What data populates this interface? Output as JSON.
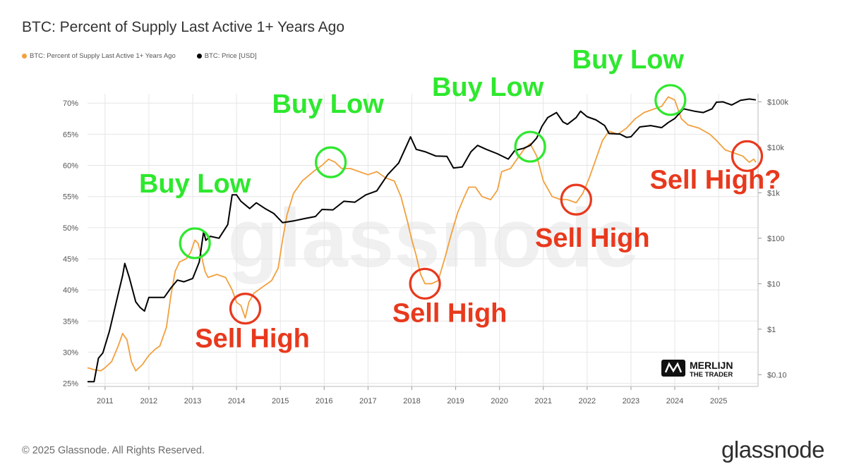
{
  "chart_data": {
    "type": "line",
    "title": "BTC: Percent of Supply Last Active 1+ Years Ago",
    "legend": {
      "placement": "top-left",
      "entries": [
        "BTC: Percent of Supply Last Active 1+ Years Ago",
        "BTC: Price [USD]"
      ]
    },
    "x_range": [
      2010.6,
      2025.9
    ],
    "x_ticks": [
      "2011",
      "2012",
      "2013",
      "2014",
      "2015",
      "2016",
      "2017",
      "2018",
      "2019",
      "2020",
      "2021",
      "2022",
      "2023",
      "2024",
      "2025"
    ],
    "y_left": {
      "ticks": [
        "25%",
        "30%",
        "35%",
        "40%",
        "45%",
        "50%",
        "55%",
        "60%",
        "65%",
        "70%"
      ],
      "range": [
        24.5,
        71.5
      ]
    },
    "y_right": {
      "scale": "log",
      "ticks": [
        "$0.10",
        "$1",
        "$10",
        "$100",
        "$1k",
        "$10k",
        "$100k"
      ],
      "range": [
        0.055,
        150000
      ]
    },
    "grid": true,
    "series": [
      {
        "name": "BTC: Percent of Supply Last Active 1+ Years Ago",
        "axis": "left",
        "color": "#f2a03d",
        "points": [
          [
            2010.6,
            27.5
          ],
          [
            2010.75,
            27.2
          ],
          [
            2010.9,
            27.0
          ],
          [
            2011.0,
            27.5
          ],
          [
            2011.15,
            28.5
          ],
          [
            2011.3,
            31.0
          ],
          [
            2011.4,
            33.0
          ],
          [
            2011.5,
            32.0
          ],
          [
            2011.6,
            28.5
          ],
          [
            2011.7,
            27.0
          ],
          [
            2011.85,
            28.0
          ],
          [
            2012.0,
            29.5
          ],
          [
            2012.15,
            30.5
          ],
          [
            2012.25,
            31.0
          ],
          [
            2012.4,
            34.0
          ],
          [
            2012.5,
            39.0
          ],
          [
            2012.6,
            43.0
          ],
          [
            2012.7,
            44.5
          ],
          [
            2012.85,
            45.0
          ],
          [
            2012.95,
            46.0
          ],
          [
            2013.05,
            48.0
          ],
          [
            2013.12,
            47.5
          ],
          [
            2013.2,
            45.5
          ],
          [
            2013.28,
            43.0
          ],
          [
            2013.35,
            42.0
          ],
          [
            2013.55,
            42.5
          ],
          [
            2013.75,
            42.0
          ],
          [
            2013.9,
            40.0
          ],
          [
            2014.0,
            38.0
          ],
          [
            2014.1,
            37.5
          ],
          [
            2014.2,
            35.5
          ],
          [
            2014.28,
            38.0
          ],
          [
            2014.4,
            39.5
          ],
          [
            2014.6,
            40.5
          ],
          [
            2014.8,
            41.5
          ],
          [
            2014.95,
            43.5
          ],
          [
            2015.05,
            48.0
          ],
          [
            2015.15,
            52.0
          ],
          [
            2015.3,
            55.5
          ],
          [
            2015.5,
            57.5
          ],
          [
            2015.75,
            59.0
          ],
          [
            2015.95,
            60.0
          ],
          [
            2016.1,
            61.0
          ],
          [
            2016.25,
            60.5
          ],
          [
            2016.4,
            59.5
          ],
          [
            2016.6,
            59.5
          ],
          [
            2016.8,
            59.0
          ],
          [
            2017.0,
            58.5
          ],
          [
            2017.2,
            59.0
          ],
          [
            2017.4,
            58.0
          ],
          [
            2017.6,
            57.5
          ],
          [
            2017.75,
            55.0
          ],
          [
            2017.9,
            51.0
          ],
          [
            2018.0,
            48.0
          ],
          [
            2018.1,
            45.5
          ],
          [
            2018.2,
            42.5
          ],
          [
            2018.3,
            41.0
          ],
          [
            2018.45,
            41.0
          ],
          [
            2018.6,
            41.5
          ],
          [
            2018.75,
            45.0
          ],
          [
            2018.9,
            49.0
          ],
          [
            2019.05,
            52.5
          ],
          [
            2019.2,
            55.0
          ],
          [
            2019.3,
            56.5
          ],
          [
            2019.45,
            56.5
          ],
          [
            2019.6,
            55.0
          ],
          [
            2019.8,
            54.5
          ],
          [
            2019.95,
            56.0
          ],
          [
            2020.05,
            59.0
          ],
          [
            2020.25,
            59.5
          ],
          [
            2020.4,
            61.0
          ],
          [
            2020.55,
            62.5
          ],
          [
            2020.7,
            63.5
          ],
          [
            2020.85,
            61.5
          ],
          [
            2021.0,
            57.5
          ],
          [
            2021.2,
            55.0
          ],
          [
            2021.4,
            54.5
          ],
          [
            2021.55,
            54.5
          ],
          [
            2021.75,
            54.0
          ],
          [
            2021.9,
            55.5
          ],
          [
            2022.05,
            58.0
          ],
          [
            2022.2,
            61.0
          ],
          [
            2022.35,
            64.0
          ],
          [
            2022.5,
            65.5
          ],
          [
            2022.7,
            65.0
          ],
          [
            2022.9,
            66.0
          ],
          [
            2023.1,
            67.5
          ],
          [
            2023.3,
            68.5
          ],
          [
            2023.5,
            69.0
          ],
          [
            2023.7,
            69.5
          ],
          [
            2023.85,
            71.0
          ],
          [
            2024.0,
            70.5
          ],
          [
            2024.15,
            67.5
          ],
          [
            2024.3,
            66.5
          ],
          [
            2024.55,
            66.0
          ],
          [
            2024.8,
            65.0
          ],
          [
            2024.95,
            64.0
          ],
          [
            2025.15,
            62.5
          ],
          [
            2025.35,
            62.0
          ],
          [
            2025.55,
            61.5
          ],
          [
            2025.7,
            60.5
          ],
          [
            2025.8,
            61.0
          ],
          [
            2025.85,
            60.5
          ]
        ]
      },
      {
        "name": "BTC: Price [USD]",
        "axis": "right",
        "color": "#000000",
        "points": [
          [
            2010.6,
            0.07
          ],
          [
            2010.75,
            0.07
          ],
          [
            2010.85,
            0.23
          ],
          [
            2010.95,
            0.3
          ],
          [
            2011.1,
            0.9
          ],
          [
            2011.3,
            6
          ],
          [
            2011.4,
            15
          ],
          [
            2011.45,
            28
          ],
          [
            2011.55,
            14
          ],
          [
            2011.7,
            4
          ],
          [
            2011.8,
            3
          ],
          [
            2011.9,
            2.5
          ],
          [
            2012.0,
            5
          ],
          [
            2012.15,
            5
          ],
          [
            2012.35,
            5
          ],
          [
            2012.5,
            8
          ],
          [
            2012.65,
            12
          ],
          [
            2012.8,
            11
          ],
          [
            2013.0,
            13
          ],
          [
            2013.15,
            30
          ],
          [
            2013.25,
            140
          ],
          [
            2013.3,
            90
          ],
          [
            2013.4,
            110
          ],
          [
            2013.6,
            100
          ],
          [
            2013.8,
            200
          ],
          [
            2013.9,
            900
          ],
          [
            2014.0,
            900
          ],
          [
            2014.1,
            650
          ],
          [
            2014.3,
            450
          ],
          [
            2014.45,
            600
          ],
          [
            2014.65,
            450
          ],
          [
            2014.85,
            350
          ],
          [
            2015.05,
            220
          ],
          [
            2015.3,
            240
          ],
          [
            2015.55,
            270
          ],
          [
            2015.8,
            300
          ],
          [
            2015.95,
            430
          ],
          [
            2016.2,
            420
          ],
          [
            2016.45,
            650
          ],
          [
            2016.7,
            620
          ],
          [
            2016.95,
            900
          ],
          [
            2017.2,
            1100
          ],
          [
            2017.45,
            2500
          ],
          [
            2017.7,
            4500
          ],
          [
            2017.9,
            12000
          ],
          [
            2017.97,
            17000
          ],
          [
            2018.1,
            9000
          ],
          [
            2018.3,
            8000
          ],
          [
            2018.55,
            6400
          ],
          [
            2018.8,
            6300
          ],
          [
            2018.95,
            3500
          ],
          [
            2019.15,
            3700
          ],
          [
            2019.35,
            8000
          ],
          [
            2019.5,
            11000
          ],
          [
            2019.7,
            9000
          ],
          [
            2019.95,
            7200
          ],
          [
            2020.2,
            5500
          ],
          [
            2020.35,
            8500
          ],
          [
            2020.55,
            9500
          ],
          [
            2020.7,
            11000
          ],
          [
            2020.85,
            16000
          ],
          [
            2020.97,
            29000
          ],
          [
            2021.1,
            45000
          ],
          [
            2021.3,
            58000
          ],
          [
            2021.45,
            36000
          ],
          [
            2021.55,
            32000
          ],
          [
            2021.75,
            45000
          ],
          [
            2021.85,
            62000
          ],
          [
            2022.0,
            47000
          ],
          [
            2022.2,
            40000
          ],
          [
            2022.4,
            30000
          ],
          [
            2022.5,
            20000
          ],
          [
            2022.75,
            19500
          ],
          [
            2022.9,
            16500
          ],
          [
            2023.0,
            17000
          ],
          [
            2023.2,
            28000
          ],
          [
            2023.45,
            30000
          ],
          [
            2023.7,
            27000
          ],
          [
            2023.85,
            35000
          ],
          [
            2024.0,
            43000
          ],
          [
            2024.2,
            70000
          ],
          [
            2024.45,
            62000
          ],
          [
            2024.65,
            58000
          ],
          [
            2024.85,
            70000
          ],
          [
            2024.95,
            98000
          ],
          [
            2025.1,
            100000
          ],
          [
            2025.3,
            85000
          ],
          [
            2025.5,
            108000
          ],
          [
            2025.7,
            115000
          ],
          [
            2025.8,
            112000
          ],
          [
            2025.85,
            110000
          ]
        ]
      }
    ],
    "annotations": [
      {
        "text": "Buy Low",
        "kind": "buy",
        "x": 2013.05,
        "y": 47.5
      },
      {
        "text": "Sell High",
        "kind": "sell",
        "x": 2014.2,
        "y": 37.0
      },
      {
        "text": "Buy Low",
        "kind": "buy",
        "x": 2016.15,
        "y": 60.5
      },
      {
        "text": "Sell High",
        "kind": "sell",
        "x": 2018.3,
        "y": 41.0
      },
      {
        "text": "Buy Low",
        "kind": "buy",
        "x": 2020.7,
        "y": 63.0
      },
      {
        "text": "Sell High",
        "kind": "sell",
        "x": 2021.75,
        "y": 54.5
      },
      {
        "text": "Buy Low",
        "kind": "buy",
        "x": 2023.9,
        "y": 70.5
      },
      {
        "text": "Sell High?",
        "kind": "sell",
        "x": 2025.65,
        "y": 61.5
      }
    ],
    "colors": {
      "buy": "#2ee82e",
      "sell": "#e8391d",
      "grid": "#e6e6e6"
    }
  },
  "watermark": "glassnode",
  "badge": {
    "line1": "MERLIJN",
    "line2": "THE TRADER"
  },
  "footer": {
    "copyright": "© 2025 Glassnode. All Rights Reserved.",
    "logo": "glassnode"
  }
}
